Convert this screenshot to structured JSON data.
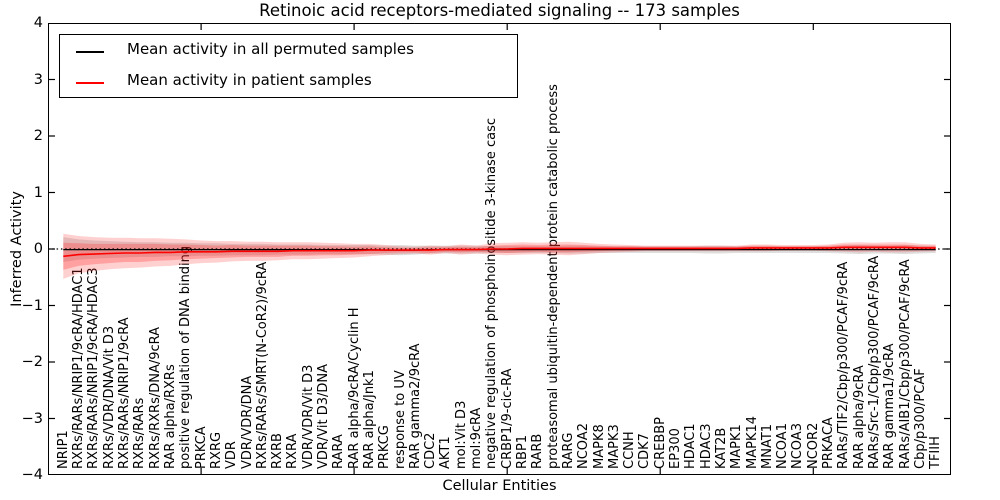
{
  "figure": {
    "title": "Retinoic acid receptors-mediated signaling -- 173 samples",
    "xlabel": "Cellular Entities",
    "ylabel": "Inferred Activity"
  },
  "legend": {
    "items": [
      {
        "label": "Mean activity in all permuted samples",
        "color": "#000000"
      },
      {
        "label": "Mean activity in patient samples",
        "color": "#ff0000"
      }
    ]
  },
  "axes": {
    "y_ticks": [
      "4",
      "3",
      "2",
      "1",
      "0",
      "−1",
      "−2",
      "−3",
      "−4"
    ],
    "y_tick_values": [
      4,
      3,
      2,
      1,
      0,
      -1,
      -2,
      -3,
      -4
    ],
    "ylim": [
      -4,
      4
    ],
    "x_major_tick_data_positions": [
      10,
      20,
      30,
      40,
      50
    ]
  },
  "chart_data": {
    "type": "line",
    "title": "Retinoic acid receptors-mediated signaling -- 173 samples",
    "xlabel": "Cellular Entities",
    "ylabel": "Inferred Activity",
    "ylim": [
      -4,
      4
    ],
    "grid": false,
    "legend_position": "upper left",
    "zero_line": {
      "style": "dotted",
      "color": "#000000",
      "y": 0
    },
    "categories": [
      "NRIP1",
      "RXRs/RARs/NRIP1/9cRA/HDAC1",
      "RXRs/RARs/NRIP1/9cRA/HDAC3",
      "RXRs/VDR/DNA/Vit D3",
      "RXRs/RARs/NRIP1/9cRA",
      "RXRs/RARs",
      "RXRs/RXRs/DNA/9cRA",
      "RAR alpha/RXRs",
      "positive regulation of DNA binding",
      "PRKCA",
      "RXRG",
      "VDR",
      "VDR/VDR/DNA",
      "RXRs/RARs/SMRT(N-CoR2)/9cRA",
      "RXRB",
      "RXRA",
      "VDR/VDR/Vit D3",
      "VDR/Vit D3/DNA",
      "RARA",
      "RAR alpha/9cRA/Cyclin H",
      "RAR alpha/Jnk1",
      "PRKCG",
      "response to UV",
      "RAR gamma2/9cRA",
      "CDC2",
      "AKT1",
      "mol:Vit D3",
      "mol:9cRA",
      "negative regulation of phosphoinositide 3-kinase casc",
      "CRBP1/9-cic-RA",
      "RBP1",
      "RARB",
      "proteasomal ubiquitin-dependent protein catabolic process",
      "RARG",
      "NCOA2",
      "MAPK8",
      "MAPK3",
      "CCNH",
      "CDK7",
      "CREBBP",
      "EP300",
      "HDAC1",
      "HDAC3",
      "KAT2B",
      "MAPK1",
      "MAPK14",
      "MNAT1",
      "NCOA1",
      "NCOA3",
      "NCOR2",
      "PRKACA",
      "RARs/TIF2/Cbp/p300/PCAF/9cRA",
      "RAR alpha/9cRA",
      "RARs/Src-1/Cbp/p300/PCAF/9cRA",
      "RAR gamma1/9cRA",
      "RARs/AIB1/Cbp/p300/PCAF/9cRA",
      "Cbp/p300/PCAF",
      "TFIIH"
    ],
    "series": [
      {
        "name": "Mean activity in all permuted samples",
        "color": "#000000",
        "values": [
          -0.01,
          -0.01,
          -0.01,
          -0.01,
          -0.01,
          -0.01,
          -0.01,
          -0.01,
          -0.01,
          -0.01,
          -0.01,
          -0.01,
          -0.01,
          -0.01,
          -0.01,
          -0.01,
          -0.01,
          -0.01,
          -0.01,
          -0.01,
          -0.01,
          -0.02,
          -0.02,
          -0.02,
          -0.01,
          -0.01,
          -0.01,
          -0.01,
          -0.01,
          -0.01,
          -0.01,
          -0.01,
          -0.01,
          -0.01,
          -0.01,
          -0.01,
          -0.01,
          -0.01,
          -0.01,
          -0.01,
          -0.01,
          -0.01,
          -0.01,
          -0.01,
          -0.01,
          -0.01,
          -0.01,
          -0.01,
          -0.01,
          -0.01,
          -0.01,
          -0.01,
          -0.01,
          -0.01,
          -0.01,
          -0.01,
          -0.01,
          -0.01
        ]
      },
      {
        "name": "Mean activity in patient samples",
        "color": "#ff0000",
        "values": [
          -0.13,
          -0.1,
          -0.09,
          -0.08,
          -0.07,
          -0.07,
          -0.06,
          -0.06,
          -0.05,
          -0.05,
          -0.05,
          -0.04,
          -0.04,
          -0.04,
          -0.04,
          -0.03,
          -0.03,
          -0.03,
          -0.03,
          -0.03,
          -0.02,
          -0.02,
          -0.02,
          -0.02,
          -0.02,
          -0.01,
          -0.01,
          -0.01,
          0.0,
          0.0,
          0.01,
          0.01,
          0.01,
          0.01,
          0.01,
          0.01,
          0.01,
          0.01,
          0.01,
          0.01,
          0.01,
          0.01,
          0.01,
          0.01,
          0.01,
          0.02,
          0.02,
          0.02,
          0.02,
          0.02,
          0.02,
          0.03,
          0.03,
          0.03,
          0.03,
          0.03,
          0.02,
          0.02
        ]
      }
    ],
    "bands": [
      {
        "name": "permuted-std-band",
        "center": "permuted",
        "color": "rgba(0,0,0,0.13)",
        "half_widths": [
          0.22,
          0.18,
          0.16,
          0.15,
          0.14,
          0.13,
          0.13,
          0.12,
          0.12,
          0.11,
          0.11,
          0.1,
          0.1,
          0.1,
          0.09,
          0.09,
          0.09,
          0.08,
          0.08,
          0.08,
          0.08,
          0.08,
          0.09,
          0.08,
          0.07,
          0.07,
          0.07,
          0.07,
          0.06,
          0.06,
          0.06,
          0.06,
          0.06,
          0.07,
          0.07,
          0.06,
          0.06,
          0.06,
          0.06,
          0.06,
          0.06,
          0.06,
          0.07,
          0.07,
          0.06,
          0.06,
          0.06,
          0.06,
          0.06,
          0.06,
          0.06,
          0.07,
          0.08,
          0.07,
          0.07,
          0.08,
          0.07,
          0.06
        ]
      },
      {
        "name": "patient-band-outer",
        "center": "patient",
        "color": "rgba(255,40,40,0.22)",
        "half_widths": [
          0.4,
          0.33,
          0.3,
          0.28,
          0.27,
          0.26,
          0.25,
          0.24,
          0.22,
          0.2,
          0.19,
          0.18,
          0.17,
          0.17,
          0.16,
          0.15,
          0.15,
          0.14,
          0.13,
          0.12,
          0.11,
          0.09,
          0.07,
          0.06,
          0.08,
          0.06,
          0.09,
          0.07,
          0.1,
          0.11,
          0.11,
          0.1,
          0.11,
          0.12,
          0.1,
          0.08,
          0.07,
          0.06,
          0.05,
          0.05,
          0.05,
          0.05,
          0.05,
          0.05,
          0.05,
          0.06,
          0.06,
          0.05,
          0.05,
          0.05,
          0.06,
          0.08,
          0.09,
          0.08,
          0.09,
          0.09,
          0.07,
          0.06
        ]
      },
      {
        "name": "patient-band-inner",
        "center": "patient",
        "color": "rgba(255,40,40,0.28)",
        "half_widths": [
          0.24,
          0.2,
          0.18,
          0.17,
          0.16,
          0.16,
          0.15,
          0.14,
          0.13,
          0.12,
          0.11,
          0.11,
          0.1,
          0.1,
          0.1,
          0.09,
          0.09,
          0.08,
          0.08,
          0.07,
          0.07,
          0.05,
          0.04,
          0.04,
          0.05,
          0.04,
          0.05,
          0.04,
          0.06,
          0.07,
          0.07,
          0.06,
          0.07,
          0.07,
          0.06,
          0.05,
          0.04,
          0.04,
          0.03,
          0.03,
          0.03,
          0.03,
          0.03,
          0.03,
          0.03,
          0.04,
          0.04,
          0.03,
          0.03,
          0.03,
          0.04,
          0.05,
          0.05,
          0.05,
          0.05,
          0.05,
          0.04,
          0.04
        ]
      }
    ]
  }
}
